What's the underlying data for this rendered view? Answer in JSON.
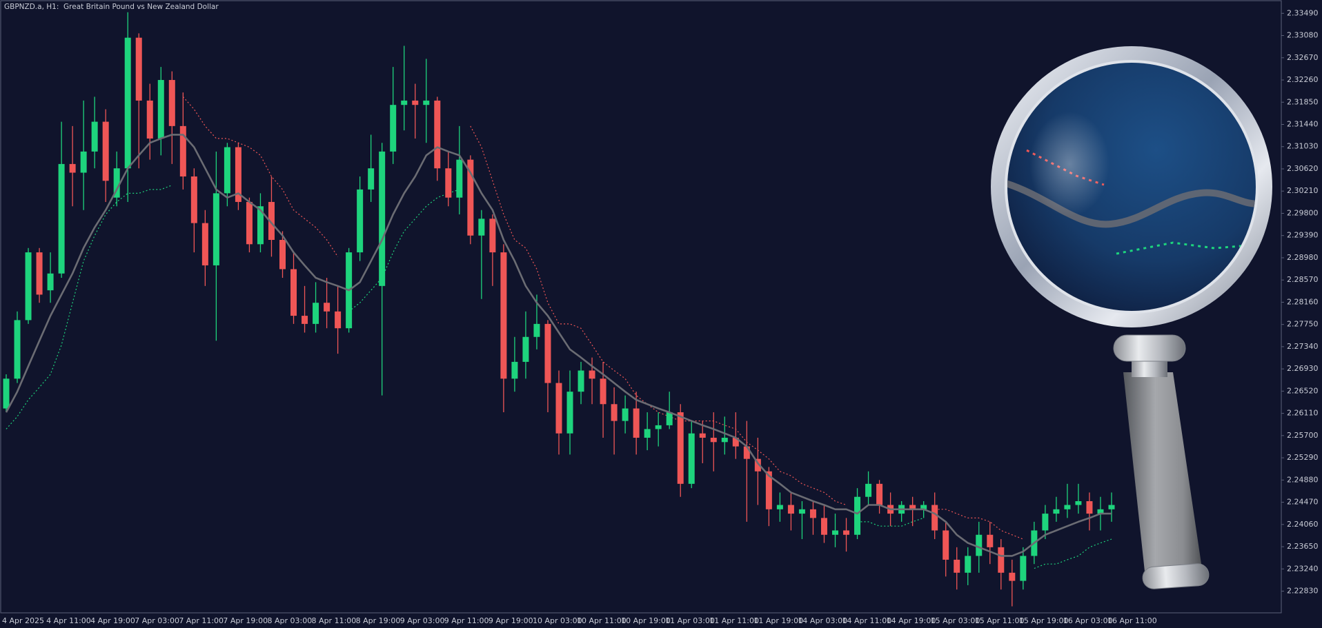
{
  "chart_data": {
    "type": "candlestick",
    "title": "GBPNZD.a, H1:  Great Britain Pound vs New Zealand Dollar",
    "categories": [
      "4 Apr 2025",
      null,
      null,
      null,
      "4 Apr 11:00",
      null,
      null,
      null,
      "4 Apr 19:00",
      null,
      null,
      null,
      "7 Apr 03:00",
      null,
      null,
      null,
      "7 Apr 11:00",
      null,
      null,
      null,
      "7 Apr 19:00",
      null,
      null,
      null,
      "8 Apr 03:00",
      null,
      null,
      null,
      "8 Apr 11:00",
      null,
      null,
      null,
      "8 Apr 19:00",
      null,
      null,
      null,
      "9 Apr 03:00",
      null,
      null,
      null,
      "9 Apr 11:00",
      null,
      null,
      null,
      "9 Apr 19:00",
      null,
      null,
      null,
      "10 Apr 03:00",
      null,
      null,
      null,
      "10 Apr 11:00",
      null,
      null,
      null,
      "10 Apr 19:00",
      null,
      null,
      null,
      "11 Apr 03:00",
      null,
      null,
      null,
      "11 Apr 11:00",
      null,
      null,
      null,
      "11 Apr 19:00",
      null,
      null,
      null,
      "14 Apr 03:00",
      null,
      null,
      null,
      "14 Apr 11:00",
      null,
      null,
      null,
      "14 Apr 19:00",
      null,
      null,
      null,
      "15 Apr 03:00",
      null,
      null,
      null,
      "15 Apr 11:00",
      null,
      null,
      null,
      "15 Apr 19:00",
      null,
      null,
      null,
      "16 Apr 03:00",
      null,
      null,
      null,
      "16 Apr 11:00"
    ],
    "open": [
      2.262,
      2.2675,
      2.2783,
      2.2908,
      2.2838,
      2.2869,
      2.3071,
      2.3055,
      2.3094,
      2.3149,
      2.3009,
      2.3063,
      2.3304,
      2.3188,
      2.3118,
      2.3226,
      2.3141,
      2.3048,
      2.2962,
      2.2884,
      2.3017,
      2.3102,
      2.3001,
      2.2923,
      2.3001,
      2.2931,
      2.2877,
      2.2791,
      2.2776,
      2.2815,
      2.2799,
      2.2768,
      2.2908,
      2.3024,
      2.2846,
      2.3094,
      2.318,
      2.3188,
      2.318,
      2.3188,
      2.3063,
      2.3009,
      2.3079,
      2.2939,
      2.297,
      2.2908,
      2.2675,
      2.2706,
      2.2752,
      2.2776,
      2.2667,
      2.2574,
      2.2651,
      2.269,
      2.2675,
      2.2628,
      2.2597,
      2.262,
      2.2566,
      2.2582,
      2.2589,
      2.2613,
      2.2481,
      2.2574,
      2.2566,
      2.2558,
      2.2566,
      2.255,
      2.2527,
      2.2504,
      2.2434,
      2.2442,
      2.2426,
      2.2434,
      2.2418,
      2.2387,
      2.2395,
      2.2387,
      2.2457,
      2.2481,
      2.2442,
      2.2426,
      2.2442,
      2.2434,
      2.2442,
      2.2395,
      2.2341,
      2.2317,
      2.2348,
      2.2387,
      2.2364,
      2.2317,
      2.2302,
      2.2348,
      2.2395,
      2.2426,
      2.2434,
      2.2442,
      2.2449,
      2.2426,
      2.2434
    ],
    "high": [
      2.2683,
      2.2799,
      2.2916,
      2.2916,
      2.2908,
      2.3149,
      2.3141,
      2.3188,
      2.3195,
      2.3172,
      2.3094,
      2.3351,
      2.3312,
      2.3219,
      2.325,
      2.3242,
      2.3203,
      2.3063,
      2.2986,
      2.3094,
      2.311,
      2.311,
      2.3009,
      2.3017,
      2.3048,
      2.2947,
      2.2908,
      2.2846,
      2.2853,
      2.2861,
      2.2846,
      2.2916,
      2.3048,
      2.3125,
      2.311,
      2.325,
      2.3289,
      2.3219,
      2.3265,
      2.3195,
      2.3094,
      2.3141,
      2.3087,
      2.2986,
      2.2978,
      2.2923,
      2.2752,
      2.2799,
      2.283,
      2.2783,
      2.269,
      2.269,
      2.2706,
      2.2714,
      2.2706,
      2.2659,
      2.2644,
      2.2651,
      2.2613,
      2.2613,
      2.2651,
      2.2628,
      2.2597,
      2.2597,
      2.2613,
      2.2605,
      2.2613,
      2.2597,
      2.2566,
      2.2512,
      2.2465,
      2.2465,
      2.2449,
      2.2449,
      2.2442,
      2.2426,
      2.2418,
      2.2473,
      2.2504,
      2.2488,
      2.2465,
      2.2449,
      2.2457,
      2.2449,
      2.2465,
      2.2411,
      2.2364,
      2.2364,
      2.2411,
      2.2411,
      2.2379,
      2.2341,
      2.2364,
      2.2411,
      2.2442,
      2.2457,
      2.2481,
      2.2481,
      2.2465,
      2.2457,
      2.2465
    ],
    "low": [
      2.2613,
      2.2667,
      2.2776,
      2.2815,
      2.2815,
      2.2861,
      2.2993,
      2.2986,
      2.3063,
      2.3001,
      2.2993,
      2.3001,
      2.3063,
      2.3079,
      2.3087,
      2.3071,
      2.3024,
      2.2908,
      2.2846,
      2.2745,
      2.2993,
      2.2986,
      2.2908,
      2.2908,
      2.29,
      2.2861,
      2.2776,
      2.276,
      2.276,
      2.2768,
      2.2721,
      2.276,
      2.2892,
      2.3001,
      2.2644,
      2.3071,
      2.3133,
      2.3118,
      2.311,
      2.304,
      2.2993,
      2.2978,
      2.2923,
      2.2822,
      2.2846,
      2.2613,
      2.2651,
      2.2675,
      2.2729,
      2.2613,
      2.2535,
      2.2535,
      2.2628,
      2.2628,
      2.2566,
      2.2535,
      2.2574,
      2.2535,
      2.2543,
      2.255,
      2.2582,
      2.2457,
      2.2473,
      2.2519,
      2.2504,
      2.2535,
      2.2527,
      2.2411,
      2.2442,
      2.2403,
      2.2411,
      2.2395,
      2.2379,
      2.2387,
      2.2372,
      2.2364,
      2.2356,
      2.2379,
      2.2442,
      2.2426,
      2.2403,
      2.2411,
      2.2403,
      2.2418,
      2.2379,
      2.231,
      2.2286,
      2.2294,
      2.2317,
      2.2333,
      2.2286,
      2.2255,
      2.2286,
      2.2333,
      2.2379,
      2.2411,
      2.2418,
      2.2426,
      2.2395,
      2.2395,
      2.2411
    ],
    "close": [
      2.2675,
      2.2783,
      2.2908,
      2.283,
      2.2869,
      2.3071,
      2.3055,
      2.3094,
      2.3149,
      2.304,
      2.3063,
      2.3304,
      2.3188,
      2.3118,
      2.3226,
      2.3141,
      2.3048,
      2.2962,
      2.2884,
      2.3017,
      2.3102,
      2.3001,
      2.2923,
      2.2993,
      2.2931,
      2.2877,
      2.2791,
      2.2776,
      2.2815,
      2.2799,
      2.2768,
      2.2908,
      2.3024,
      2.3063,
      2.3094,
      2.318,
      2.3188,
      2.318,
      2.3188,
      2.3063,
      2.3009,
      2.3079,
      2.2939,
      2.297,
      2.2908,
      2.2675,
      2.2706,
      2.2752,
      2.2776,
      2.2667,
      2.2574,
      2.2651,
      2.269,
      2.2675,
      2.2628,
      2.2597,
      2.262,
      2.2566,
      2.2582,
      2.2589,
      2.2613,
      2.2481,
      2.2574,
      2.2566,
      2.2558,
      2.2566,
      2.255,
      2.2527,
      2.2504,
      2.2434,
      2.2442,
      2.2426,
      2.2434,
      2.2418,
      2.2387,
      2.2395,
      2.2387,
      2.2457,
      2.2481,
      2.2442,
      2.2426,
      2.2442,
      2.2434,
      2.2442,
      2.2395,
      2.2341,
      2.2317,
      2.2348,
      2.2387,
      2.2364,
      2.2317,
      2.2302,
      2.2348,
      2.2395,
      2.2426,
      2.2434,
      2.2442,
      2.2449,
      2.2426,
      2.2434,
      2.2442
    ],
    "up_color": "#1ed47d",
    "down_color": "#ef5656",
    "overlays": [
      {
        "color": "#6b6c73",
        "dash": false,
        "values": [
          2.2613,
          2.2651,
          2.2698,
          2.2745,
          2.2791,
          2.283,
          2.2869,
          2.2916,
          2.2954,
          2.2986,
          2.3024,
          2.3063,
          2.3087,
          2.311,
          2.3118,
          2.3125,
          2.3125,
          2.3102,
          2.3063,
          2.3024,
          2.3009,
          2.3017,
          2.3001,
          2.2986,
          2.2962,
          2.2939,
          2.2908,
          2.2884,
          2.2861,
          2.2853,
          2.2846,
          2.2838,
          2.2853,
          2.2892,
          2.2931,
          2.2978,
          2.3017,
          2.3048,
          2.3087,
          2.3102,
          2.3094,
          2.3087,
          2.3055,
          2.3017,
          2.2986,
          2.2931,
          2.2892,
          2.2846,
          2.2815,
          2.2791,
          2.276,
          2.2729,
          2.2714,
          2.2698,
          2.2683,
          2.2667,
          2.2651,
          2.2636,
          2.2628,
          2.262,
          2.2613,
          2.2605,
          2.2597,
          2.2589,
          2.2582,
          2.2574,
          2.2566,
          2.255,
          2.2519,
          2.2496,
          2.2481,
          2.2465,
          2.2457,
          2.2449,
          2.2442,
          2.2434,
          2.2434,
          2.2426,
          2.2442,
          2.2442,
          2.2434,
          2.2434,
          2.2434,
          2.2434,
          2.2426,
          2.2411,
          2.2387,
          2.2372,
          2.2364,
          2.2356,
          2.2348,
          2.2348,
          2.2356,
          2.2372,
          2.2387,
          2.2395,
          2.2403,
          2.2411,
          2.2418,
          2.2426,
          2.2426
        ]
      },
      {
        "color": "#ef5656",
        "dash": true,
        "values": [
          null,
          null,
          null,
          null,
          null,
          null,
          null,
          null,
          null,
          null,
          null,
          null,
          null,
          null,
          null,
          null,
          2.3195,
          2.3172,
          2.3141,
          2.3118,
          2.3118,
          2.311,
          2.3102,
          2.3087,
          2.3048,
          2.3024,
          2.2986,
          2.297,
          2.2954,
          2.2931,
          2.29,
          null,
          null,
          null,
          null,
          null,
          null,
          null,
          null,
          null,
          null,
          null,
          2.3141,
          2.3102,
          2.304,
          2.2978,
          2.2931,
          2.2916,
          2.2877,
          2.2815,
          2.2776,
          2.2776,
          2.2768,
          2.2737,
          2.2706,
          2.269,
          2.2675,
          2.2644,
          2.2628,
          2.2613,
          2.2605,
          2.2597,
          2.2597,
          2.2597,
          2.2597,
          2.2589,
          2.2582,
          2.2558,
          2.2543,
          2.2527,
          2.2504,
          2.2496,
          2.2481,
          2.2473,
          2.2465,
          2.2449,
          2.2442,
          null,
          null,
          null,
          null,
          null,
          null,
          null,
          2.2434,
          2.2434,
          2.2426,
          2.2418,
          2.2418,
          2.2411,
          2.2395,
          2.2387,
          2.2379,
          null,
          null,
          null,
          null,
          null,
          null,
          null,
          null
        ]
      },
      {
        "color": "#1ed47d",
        "dash": true,
        "values": [
          2.2582,
          2.2605,
          2.2636,
          2.2659,
          2.2683,
          2.2737,
          2.2815,
          2.2892,
          2.2939,
          2.2978,
          2.3001,
          2.3017,
          2.3017,
          2.3024,
          2.3024,
          2.3032,
          null,
          null,
          null,
          null,
          null,
          null,
          null,
          null,
          null,
          null,
          null,
          null,
          null,
          null,
          null,
          2.2799,
          2.2815,
          2.2838,
          2.2861,
          2.2908,
          2.2947,
          2.297,
          2.2993,
          2.3009,
          2.3017,
          2.3024,
          null,
          null,
          null,
          null,
          null,
          null,
          null,
          null,
          null,
          null,
          null,
          null,
          null,
          null,
          null,
          null,
          null,
          null,
          null,
          null,
          null,
          null,
          null,
          null,
          null,
          null,
          null,
          null,
          null,
          null,
          null,
          null,
          null,
          null,
          null,
          2.2411,
          2.2411,
          2.2403,
          2.2403,
          2.2403,
          2.2411,
          2.2418,
          null,
          null,
          null,
          null,
          null,
          null,
          null,
          null,
          null,
          2.2325,
          2.2333,
          2.2333,
          2.2341,
          2.2348,
          2.2364,
          2.2372,
          2.2379
        ]
      }
    ],
    "ylim": [
      2.2243,
      2.3371
    ],
    "yticks": [
      {
        "value": 2.3349,
        "label": "2.33490"
      },
      {
        "value": 2.3308,
        "label": "2.33080"
      },
      {
        "value": 2.3267,
        "label": "2.32670"
      },
      {
        "value": 2.3226,
        "label": "2.32260"
      },
      {
        "value": 2.3185,
        "label": "2.31850"
      },
      {
        "value": 2.3144,
        "label": "2.31440"
      },
      {
        "value": 2.3103,
        "label": "2.31030"
      },
      {
        "value": 2.3062,
        "label": "2.30620"
      },
      {
        "value": 2.3021,
        "label": "2.30210"
      },
      {
        "value": 2.298,
        "label": "2.29800"
      },
      {
        "value": 2.2939,
        "label": "2.29390"
      },
      {
        "value": 2.2898,
        "label": "2.28980"
      },
      {
        "value": 2.2857,
        "label": "2.28570"
      },
      {
        "value": 2.2816,
        "label": "2.28160"
      },
      {
        "value": 2.2775,
        "label": "2.27750"
      },
      {
        "value": 2.2734,
        "label": "2.27340"
      },
      {
        "value": 2.2693,
        "label": "2.26930"
      },
      {
        "value": 2.2652,
        "label": "2.26520"
      },
      {
        "value": 2.2611,
        "label": "2.26110"
      },
      {
        "value": 2.257,
        "label": "2.25700"
      },
      {
        "value": 2.2529,
        "label": "2.25290"
      },
      {
        "value": 2.2488,
        "label": "2.24880"
      },
      {
        "value": 2.2447,
        "label": "2.24470"
      },
      {
        "value": 2.2406,
        "label": "2.24060"
      },
      {
        "value": 2.2365,
        "label": "2.23650"
      },
      {
        "value": 2.2324,
        "label": "2.23240"
      },
      {
        "value": 2.2283,
        "label": "2.22830"
      }
    ],
    "grid": false
  }
}
